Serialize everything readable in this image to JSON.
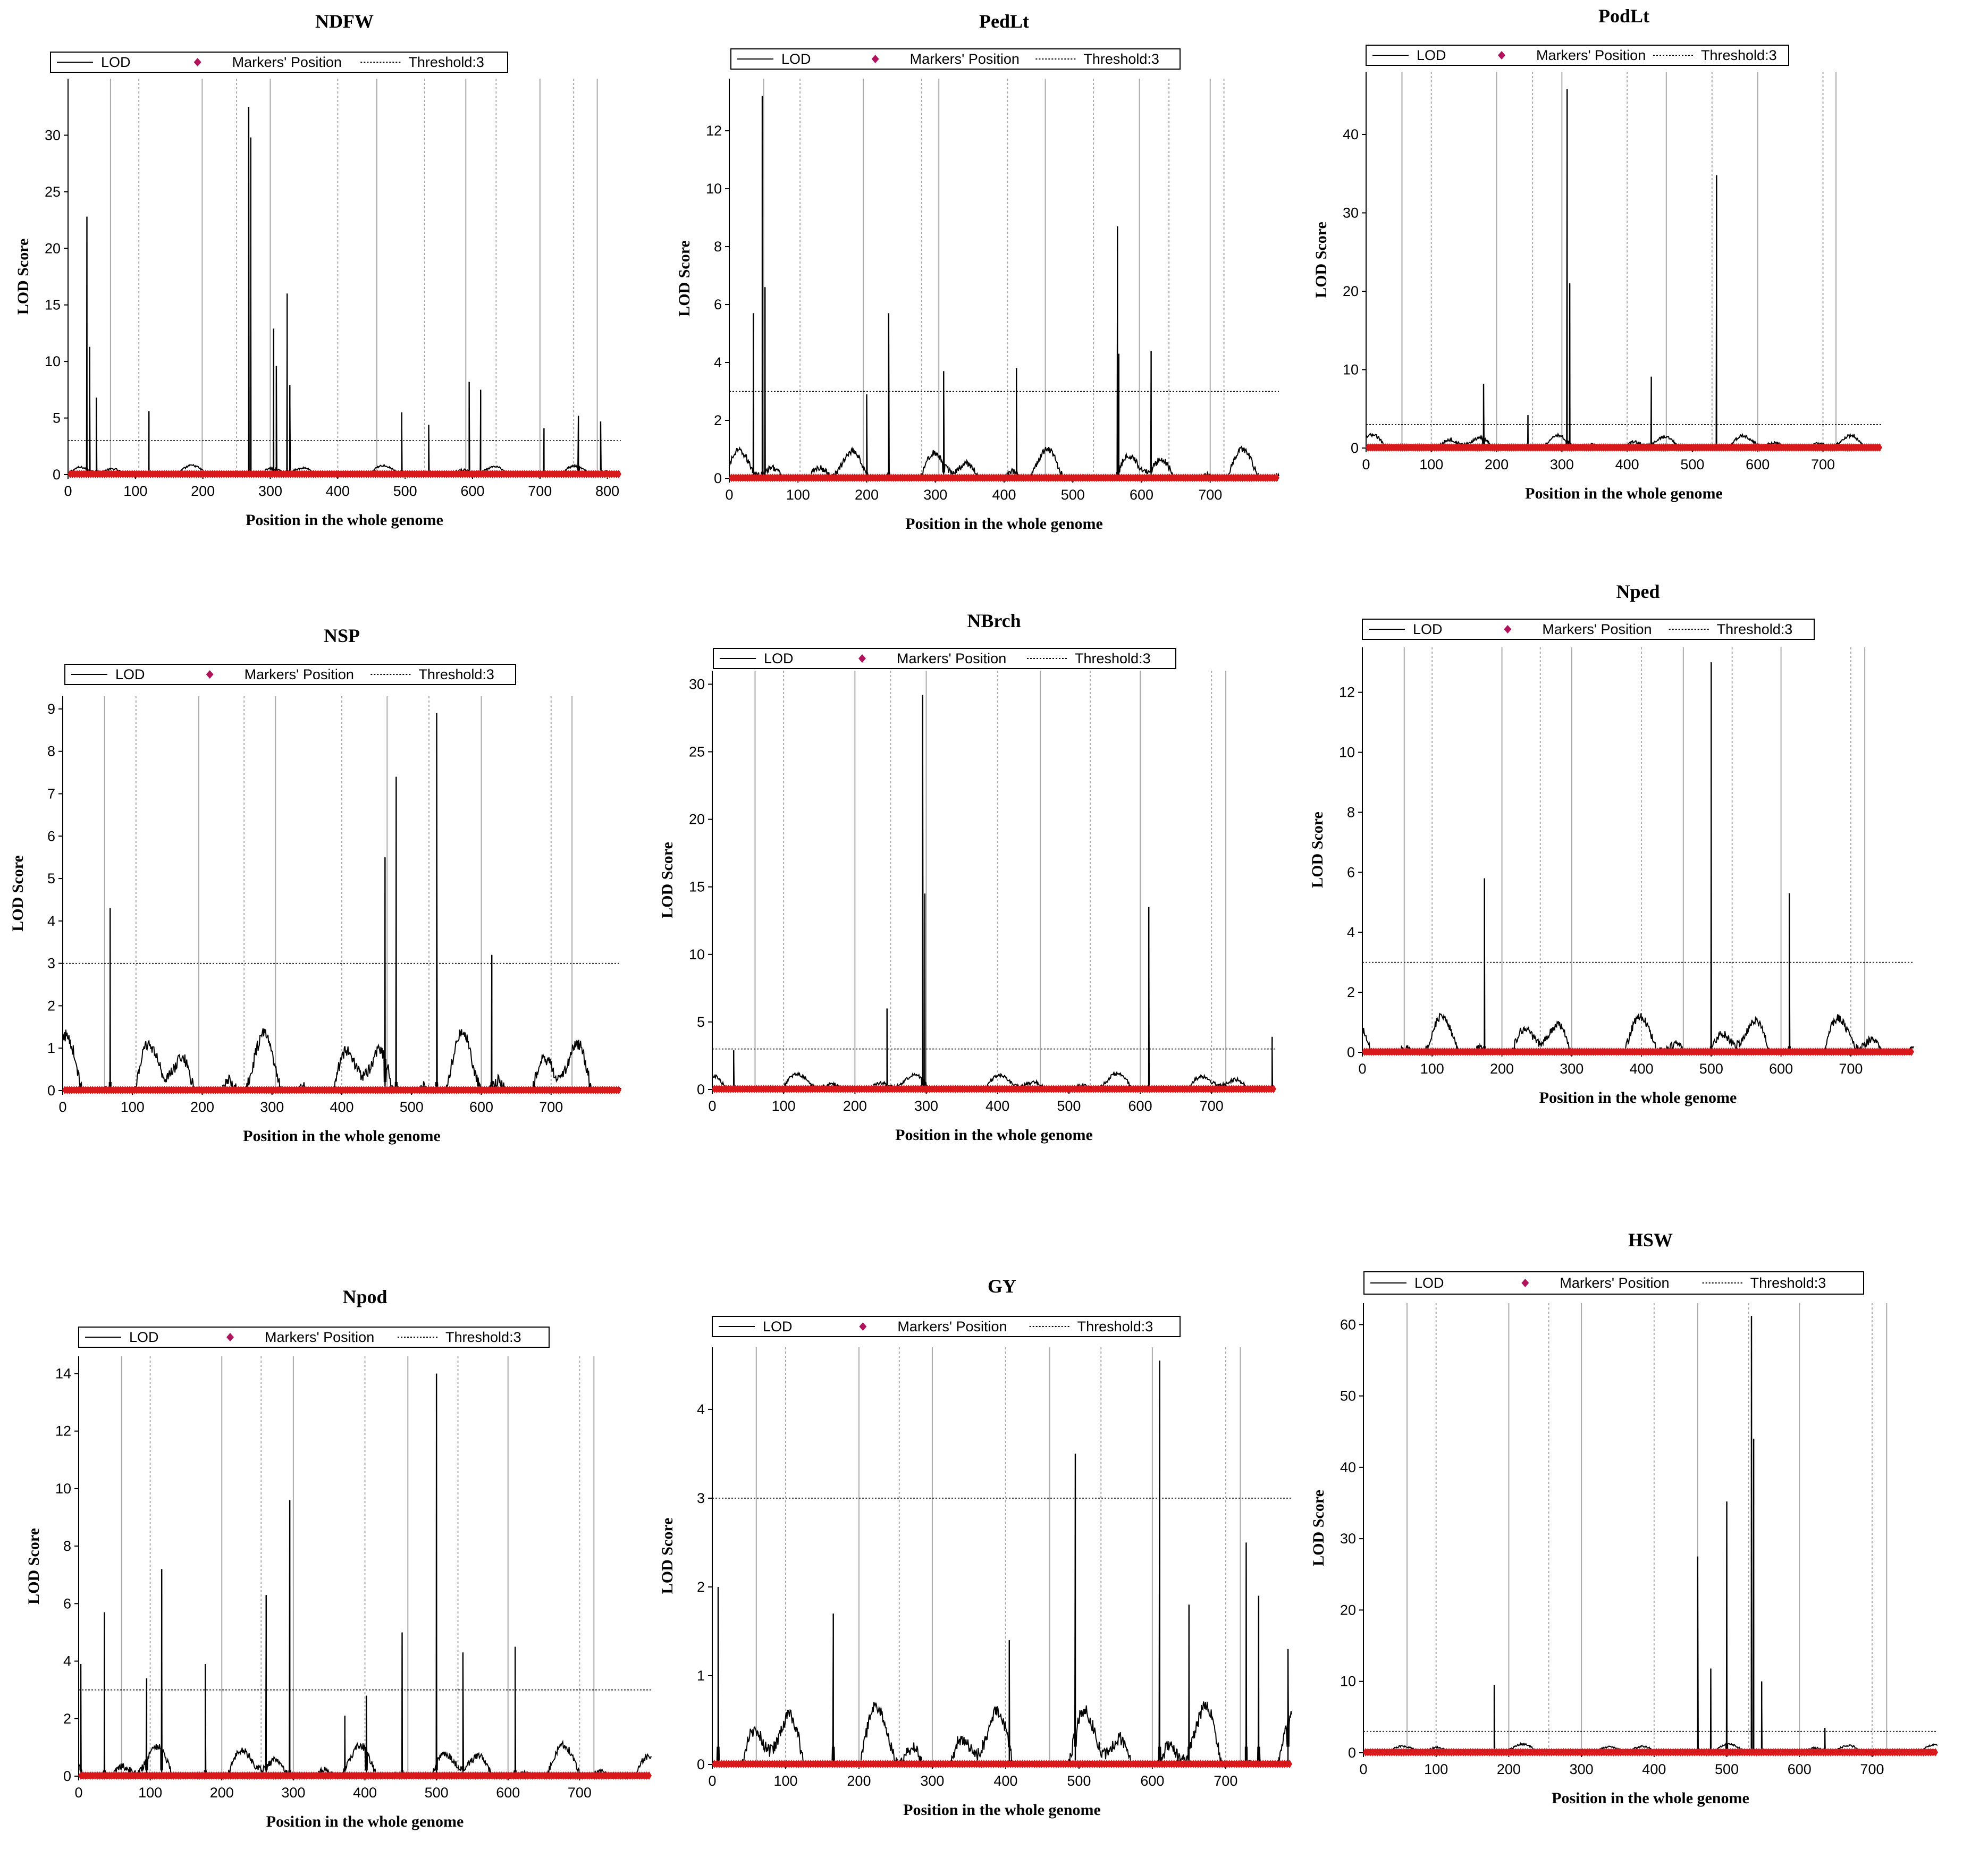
{
  "chart_data": [
    {
      "type": "line",
      "title": "NDFW",
      "xlabel": "Position in the whole genome",
      "ylabel": "LOD Score",
      "xlim": [
        0,
        820
      ],
      "ylim": [
        0,
        35
      ],
      "xticks": [
        "0",
        "100",
        "200",
        "300",
        "400",
        "500",
        "600",
        "700",
        "800"
      ],
      "yticks": [
        "0",
        "5",
        "10",
        "15",
        "20",
        "25",
        "30"
      ],
      "threshold": 3,
      "legend": [
        "LOD",
        "Markers' Position",
        "Threshold:3"
      ],
      "legend_position": "top",
      "chromosome_boundaries": [
        63,
        105,
        199,
        250,
        300,
        400,
        458,
        529,
        590,
        635,
        700,
        750,
        785
      ],
      "peaks": [
        [
          28,
          22.8
        ],
        [
          32,
          11.3
        ],
        [
          42,
          6.8
        ],
        [
          120,
          5.6
        ],
        [
          268,
          32.5
        ],
        [
          271,
          29.8
        ],
        [
          305,
          12.9
        ],
        [
          309,
          9.6
        ],
        [
          325,
          16.0
        ],
        [
          329,
          7.9
        ],
        [
          495,
          5.5
        ],
        [
          535,
          4.4
        ],
        [
          595,
          8.2
        ],
        [
          612,
          7.5
        ],
        [
          706,
          4.1
        ],
        [
          757,
          5.2
        ],
        [
          790,
          4.7
        ]
      ],
      "background_max": 1.2
    },
    {
      "type": "line",
      "title": "PedLt",
      "xlabel": "Position in the whole genome",
      "ylabel": "LOD Score",
      "xlim": [
        0,
        800
      ],
      "ylim": [
        0,
        13.8
      ],
      "xticks": [
        "0",
        "100",
        "200",
        "300",
        "400",
        "500",
        "600",
        "700"
      ],
      "yticks": [
        "0",
        "2",
        "4",
        "6",
        "8",
        "10",
        "12"
      ],
      "threshold": 3,
      "legend": [
        "LOD",
        "Markers' Position",
        "Threshold:3"
      ],
      "legend_position": "top",
      "chromosome_boundaries": [
        50,
        103,
        195,
        280,
        305,
        405,
        460,
        530,
        597,
        640,
        700,
        720
      ],
      "peaks": [
        [
          35,
          5.7
        ],
        [
          48,
          13.2
        ],
        [
          52,
          6.6
        ],
        [
          200,
          2.9
        ],
        [
          232,
          5.7
        ],
        [
          312,
          3.7
        ],
        [
          418,
          3.8
        ],
        [
          565,
          8.7
        ],
        [
          567,
          4.3
        ],
        [
          614,
          4.4
        ]
      ],
      "background_max": 1.5
    },
    {
      "type": "line",
      "title": "PodLt",
      "xlabel": "Position in the whole genome",
      "ylabel": "LOD Score",
      "xlim": [
        0,
        790
      ],
      "ylim": [
        0,
        48
      ],
      "xticks": [
        "0",
        "100",
        "200",
        "300",
        "400",
        "500",
        "600",
        "700"
      ],
      "yticks": [
        "0",
        "10",
        "20",
        "30",
        "40"
      ],
      "threshold": 3,
      "legend": [
        "LOD",
        "Markers' Position",
        "Threshold:3"
      ],
      "legend_position": "top",
      "chromosome_boundaries": [
        55,
        100,
        200,
        255,
        300,
        400,
        460,
        530,
        600,
        700,
        720
      ],
      "peaks": [
        [
          180,
          8.2
        ],
        [
          248,
          4.2
        ],
        [
          308,
          45.8
        ],
        [
          312,
          21.0
        ],
        [
          437,
          9.1
        ],
        [
          537,
          34.8
        ]
      ],
      "background_max": 2.5
    },
    {
      "type": "line",
      "title": "NSP",
      "xlabel": "Position in the whole genome",
      "ylabel": "LOD Score",
      "xlim": [
        0,
        800
      ],
      "ylim": [
        0,
        9.3
      ],
      "xticks": [
        "0",
        "100",
        "200",
        "300",
        "400",
        "500",
        "600",
        "700"
      ],
      "yticks": [
        "0",
        "1",
        "2",
        "3",
        "4",
        "5",
        "6",
        "7",
        "8",
        "9"
      ],
      "threshold": 3,
      "legend": [
        "LOD",
        "Markers' Position",
        "Threshold:3"
      ],
      "legend_position": "top",
      "chromosome_boundaries": [
        60,
        105,
        195,
        260,
        305,
        400,
        465,
        525,
        600,
        700,
        730
      ],
      "peaks": [
        [
          68,
          4.3
        ],
        [
          462,
          5.5
        ],
        [
          478,
          7.4
        ],
        [
          536,
          8.9
        ],
        [
          615,
          3.2
        ]
      ],
      "background_max": 2.0
    },
    {
      "type": "line",
      "title": "NBrch",
      "xlabel": "Position in the whole genome",
      "ylabel": "LOD Score",
      "xlim": [
        0,
        790
      ],
      "ylim": [
        0,
        31
      ],
      "xticks": [
        "0",
        "100",
        "200",
        "300",
        "400",
        "500",
        "600",
        "700"
      ],
      "yticks": [
        "0",
        "5",
        "10",
        "15",
        "20",
        "25",
        "30"
      ],
      "threshold": 3,
      "legend": [
        "LOD",
        "Markers' Position",
        "Threshold:3"
      ],
      "legend_position": "top",
      "chromosome_boundaries": [
        60,
        100,
        200,
        250,
        300,
        400,
        460,
        530,
        600,
        700,
        720
      ],
      "peaks": [
        [
          245,
          6.0
        ],
        [
          295,
          29.2
        ],
        [
          298,
          14.5
        ],
        [
          612,
          13.5
        ],
        [
          785,
          3.9
        ],
        [
          30,
          2.9
        ]
      ],
      "background_max": 1.8
    },
    {
      "type": "line",
      "title": "Nped",
      "xlabel": "Position in the whole genome",
      "ylabel": "LOD Score",
      "xlim": [
        0,
        790
      ],
      "ylim": [
        0,
        13.5
      ],
      "xticks": [
        "0",
        "100",
        "200",
        "300",
        "400",
        "500",
        "600",
        "700"
      ],
      "yticks": [
        "0",
        "2",
        "4",
        "6",
        "8",
        "10",
        "12"
      ],
      "threshold": 3,
      "legend": [
        "LOD",
        "Markers' Position",
        "Threshold:3"
      ],
      "legend_position": "top",
      "chromosome_boundaries": [
        60,
        100,
        200,
        255,
        300,
        400,
        460,
        530,
        600,
        700,
        720
      ],
      "peaks": [
        [
          175,
          5.8
        ],
        [
          500,
          13.0
        ],
        [
          612,
          5.3
        ]
      ],
      "background_max": 1.8
    },
    {
      "type": "line",
      "title": "Npod",
      "xlabel": "Position in the whole genome",
      "ylabel": "LOD Score",
      "xlim": [
        0,
        800
      ],
      "ylim": [
        0,
        14.6
      ],
      "xticks": [
        "0",
        "100",
        "200",
        "300",
        "400",
        "500",
        "600",
        "700"
      ],
      "yticks": [
        "0",
        "2",
        "4",
        "6",
        "8",
        "10",
        "12",
        "14"
      ],
      "threshold": 3,
      "legend": [
        "LOD",
        "Markers' Position",
        "Threshold:3"
      ],
      "legend_position": "top",
      "chromosome_boundaries": [
        60,
        100,
        200,
        255,
        300,
        400,
        460,
        530,
        600,
        700,
        720
      ],
      "peaks": [
        [
          3,
          3.9
        ],
        [
          36,
          5.7
        ],
        [
          95,
          3.4
        ],
        [
          116,
          7.2
        ],
        [
          177,
          3.9
        ],
        [
          262,
          6.3
        ],
        [
          295,
          9.6
        ],
        [
          402,
          2.8
        ],
        [
          452,
          5.0
        ],
        [
          500,
          14.0
        ],
        [
          537,
          4.3
        ],
        [
          610,
          4.5
        ],
        [
          372,
          2.1
        ]
      ],
      "background_max": 1.6
    },
    {
      "type": "line",
      "title": "GY",
      "xlabel": "Position in the whole genome",
      "ylabel": "LOD Score",
      "xlim": [
        0,
        790
      ],
      "ylim": [
        0,
        4.7
      ],
      "xticks": [
        "0",
        "100",
        "200",
        "300",
        "400",
        "500",
        "600",
        "700"
      ],
      "yticks": [
        "0",
        "1",
        "2",
        "3",
        "4"
      ],
      "threshold": 3,
      "legend": [
        "LOD",
        "Markers' Position",
        "Threshold:3"
      ],
      "legend_position": "top",
      "chromosome_boundaries": [
        60,
        100,
        200,
        255,
        300,
        400,
        460,
        530,
        600,
        700,
        720
      ],
      "peaks": [
        [
          495,
          3.5
        ],
        [
          610,
          4.55
        ],
        [
          728,
          2.5
        ],
        [
          8,
          2.0
        ],
        [
          165,
          1.7
        ],
        [
          405,
          1.4
        ],
        [
          745,
          1.9
        ],
        [
          650,
          1.8
        ],
        [
          785,
          1.3
        ]
      ],
      "background_max": 1.0
    },
    {
      "type": "line",
      "title": "HSW",
      "xlabel": "Position in the whole genome",
      "ylabel": "LOD Score",
      "xlim": [
        0,
        790
      ],
      "ylim": [
        0,
        63
      ],
      "xticks": [
        "0",
        "100",
        "200",
        "300",
        "400",
        "500",
        "600",
        "700"
      ],
      "yticks": [
        "0",
        "10",
        "20",
        "30",
        "40",
        "50",
        "60"
      ],
      "threshold": 3,
      "legend": [
        "LOD",
        "Markers' Position",
        "Threshold:3"
      ],
      "legend_position": "top",
      "chromosome_boundaries": [
        60,
        100,
        200,
        255,
        300,
        400,
        460,
        530,
        600,
        700,
        720
      ],
      "peaks": [
        [
          180,
          9.5
        ],
        [
          460,
          27.5
        ],
        [
          478,
          11.8
        ],
        [
          500,
          35.2
        ],
        [
          534,
          61.2
        ],
        [
          537,
          44.0
        ],
        [
          548,
          10.0
        ],
        [
          635,
          3.5
        ]
      ],
      "background_max": 1.8
    }
  ]
}
